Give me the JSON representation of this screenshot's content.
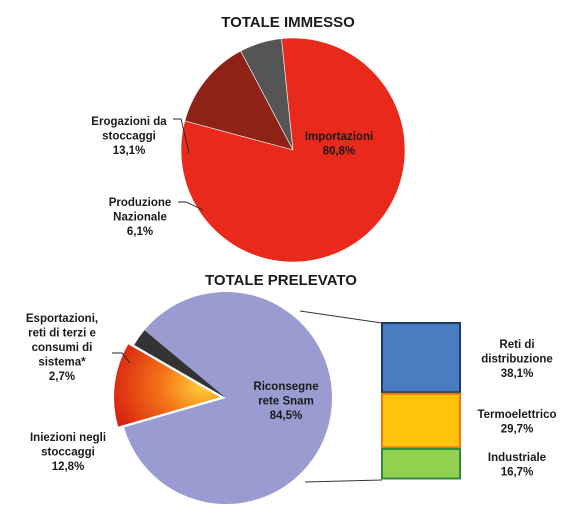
{
  "chart_data": [
    {
      "type": "pie",
      "title": "TOTALE IMMESSO",
      "slices": [
        {
          "name": [
            "Importazioni"
          ],
          "value_label": "80,8%",
          "value": 80.8,
          "color": "#e8291b"
        },
        {
          "name": [
            "Produzione",
            "Nazionale"
          ],
          "value_label": "6,1%",
          "value": 6.1,
          "color": "#555555"
        },
        {
          "name": [
            "Erogazioni da",
            "stoccaggi"
          ],
          "value_label": "13,1%",
          "value": 13.1,
          "color": "#8e2216"
        }
      ]
    },
    {
      "type": "pie",
      "title": "TOTALE PRELEVATO",
      "slices": [
        {
          "name": [
            "Riconsegne",
            "rete Snam"
          ],
          "value_label": "84,5%",
          "value": 84.5,
          "color": "#9a9bd0"
        },
        {
          "name": [
            "Iniezioni negli",
            "stoccaggi"
          ],
          "value_label": "12,8%",
          "value": 12.8,
          "color": "#ee4a12"
        },
        {
          "name": [
            "Esportazioni,",
            "reti di terzi e",
            "consumi di",
            "sistema*"
          ],
          "value_label": "2,7%",
          "value": 2.7,
          "color": "#333333"
        }
      ],
      "breakdown_of": "Riconsegne rete Snam",
      "breakdown": [
        {
          "name": [
            "Reti di",
            "distribuzione"
          ],
          "value_label": "38,1%",
          "value": 38.1,
          "color": "#4a7cc2",
          "border": "#1f3a66"
        },
        {
          "name": [
            "Termoelettrico"
          ],
          "value_label": "29,7%",
          "value": 29.7,
          "color": "#ffc30a",
          "border": "#e8761a"
        },
        {
          "name": [
            "Industriale"
          ],
          "value_label": "16,7%",
          "value": 16.7,
          "color": "#92d050",
          "border": "#2f8a3a"
        }
      ]
    }
  ]
}
